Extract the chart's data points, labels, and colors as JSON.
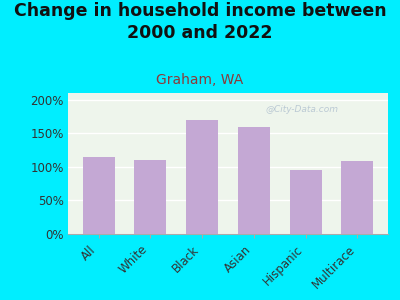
{
  "title": "Change in household income between\n2000 and 2022",
  "subtitle": "Graham, WA",
  "categories": [
    "All",
    "White",
    "Black",
    "Asian",
    "Hispanic",
    "Multirace"
  ],
  "values": [
    115,
    110,
    170,
    160,
    96,
    108
  ],
  "bar_color": "#c4a8d4",
  "background_outer": "#00eeff",
  "background_inner": "#eef5ec",
  "ylim": [
    0,
    210
  ],
  "yticks": [
    0,
    50,
    100,
    150,
    200
  ],
  "watermark": "@City-Data.com",
  "title_fontsize": 12.5,
  "subtitle_fontsize": 10,
  "subtitle_color": "#8b3a3a",
  "ytick_label_color": "#333333",
  "xtick_label_color": "#333333",
  "axis_label_fontsize": 8.5,
  "grid_color": "#ffffff",
  "spine_color": "#aaaaaa"
}
